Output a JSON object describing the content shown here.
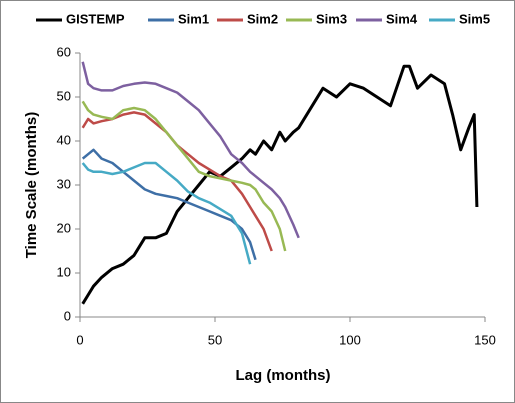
{
  "chart_data": {
    "type": "line",
    "xlabel": "Lag (months)",
    "ylabel": "Time Scale (months)",
    "x": [
      1,
      3,
      5,
      8,
      12,
      16,
      20,
      24,
      28,
      32,
      36,
      40,
      44,
      48,
      52,
      56,
      60,
      63,
      65,
      68,
      71,
      74,
      76,
      79,
      81,
      85,
      90,
      95,
      100,
      105,
      110,
      115,
      120,
      122,
      125,
      130,
      135,
      138,
      141,
      144,
      146,
      147
    ],
    "series": [
      {
        "name": "GISTEMP",
        "color": "#000000",
        "values": [
          3,
          5,
          7,
          9,
          11,
          12,
          14,
          18,
          18,
          19,
          24,
          27,
          30,
          33,
          32,
          34,
          36,
          38,
          37,
          40,
          38,
          42,
          40,
          42,
          43,
          47,
          52,
          50,
          53,
          52,
          50,
          48,
          57,
          57,
          52,
          55,
          53,
          46,
          38,
          43,
          46,
          25
        ]
      },
      {
        "name": "Sim1",
        "color": "#3e6fa6",
        "values": [
          36,
          37,
          38,
          36,
          35,
          33,
          31,
          29,
          28,
          27.5,
          27,
          26,
          25,
          24,
          23,
          22,
          20,
          17,
          13,
          null,
          null,
          null,
          null,
          null,
          null,
          null,
          null,
          null,
          null,
          null,
          null,
          null,
          null,
          null,
          null,
          null,
          null,
          null,
          null,
          null,
          null,
          null
        ]
      },
      {
        "name": "Sim2",
        "color": "#be4b48",
        "values": [
          43,
          45,
          44,
          44.5,
          45,
          46,
          46.5,
          46,
          44,
          42,
          39,
          37,
          35,
          33.5,
          32,
          31,
          28,
          25,
          23,
          20,
          15,
          null,
          null,
          null,
          null,
          null,
          null,
          null,
          null,
          null,
          null,
          null,
          null,
          null,
          null,
          null,
          null,
          null,
          null,
          null,
          null,
          null
        ]
      },
      {
        "name": "Sim3",
        "color": "#98b954",
        "values": [
          49,
          47,
          46,
          45.5,
          45,
          47,
          47.5,
          47,
          45,
          42,
          39,
          36,
          33,
          32,
          31.5,
          31,
          30.5,
          30,
          29,
          26,
          24,
          20,
          15,
          null,
          null,
          null,
          null,
          null,
          null,
          null,
          null,
          null,
          null,
          null,
          null,
          null,
          null,
          null,
          null,
          null,
          null,
          null
        ]
      },
      {
        "name": "Sim4",
        "color": "#7d60a0",
        "values": [
          58,
          53,
          52,
          51.5,
          51.5,
          52.5,
          53,
          53.3,
          53,
          52,
          51,
          49,
          47,
          44,
          41,
          37,
          35,
          33,
          32,
          30.5,
          29,
          27,
          25,
          21,
          18,
          null,
          null,
          null,
          null,
          null,
          null,
          null,
          null,
          null,
          null,
          null,
          null,
          null,
          null,
          null,
          null,
          null
        ]
      },
      {
        "name": "Sim5",
        "color": "#46aac5",
        "values": [
          35,
          33.5,
          33,
          33,
          32.5,
          33,
          34,
          35,
          35,
          33,
          31,
          28.5,
          27,
          26,
          24.5,
          23,
          19,
          12,
          null,
          null,
          null,
          null,
          null,
          null,
          null,
          null,
          null,
          null,
          null,
          null,
          null,
          null,
          null,
          null,
          null,
          null,
          null,
          null,
          null,
          null,
          null,
          null
        ]
      }
    ],
    "xlim": [
      0,
      150
    ],
    "xticks": [
      0,
      50,
      100,
      150
    ],
    "ylim": [
      0,
      60
    ],
    "yticks": [
      0,
      10,
      20,
      30,
      40,
      50,
      60
    ],
    "grid": false,
    "legend": "top"
  }
}
